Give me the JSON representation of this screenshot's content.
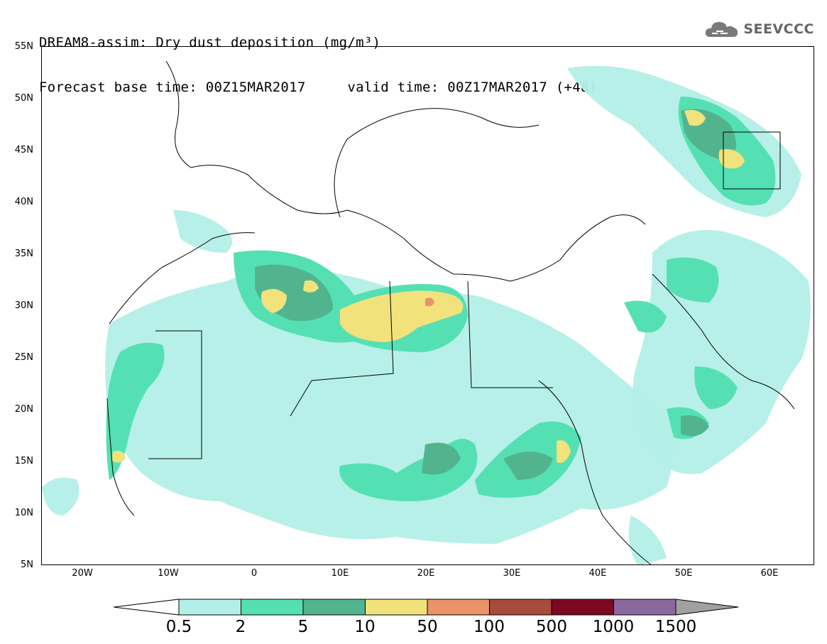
{
  "header": {
    "title_line1": "DREAM8-assim: Dry dust deposition (mg/m³)",
    "title_line2": "Forecast base time: 00Z15MAR2017     valid time: 00Z17MAR2017 (+48)"
  },
  "logo": {
    "icon": "cloud-icon",
    "text": "SEEVCCC"
  },
  "map": {
    "lat_labels": [
      "55N",
      "50N",
      "45N",
      "40N",
      "35N",
      "30N",
      "25N",
      "20N",
      "15N",
      "10N",
      "5N"
    ],
    "lon_labels": [
      "20W",
      "10W",
      "0",
      "10E",
      "20E",
      "30E",
      "40E",
      "50E",
      "60E"
    ],
    "region": {
      "lon_range": [
        -25,
        65
      ],
      "lat_range": [
        5,
        55
      ]
    }
  },
  "legend": {
    "labels": [
      "0.5",
      "2",
      "5",
      "10",
      "50",
      "100",
      "500",
      "1000",
      "1500"
    ],
    "colors": [
      "#b3efe8",
      "#55e0b4",
      "#52b48e",
      "#f1e27c",
      "#ea9268",
      "#a64c3c",
      "#7e0722",
      "#8a6a9e"
    ],
    "low_color": "#ffffff",
    "high_color": "#a0a0a0"
  }
}
